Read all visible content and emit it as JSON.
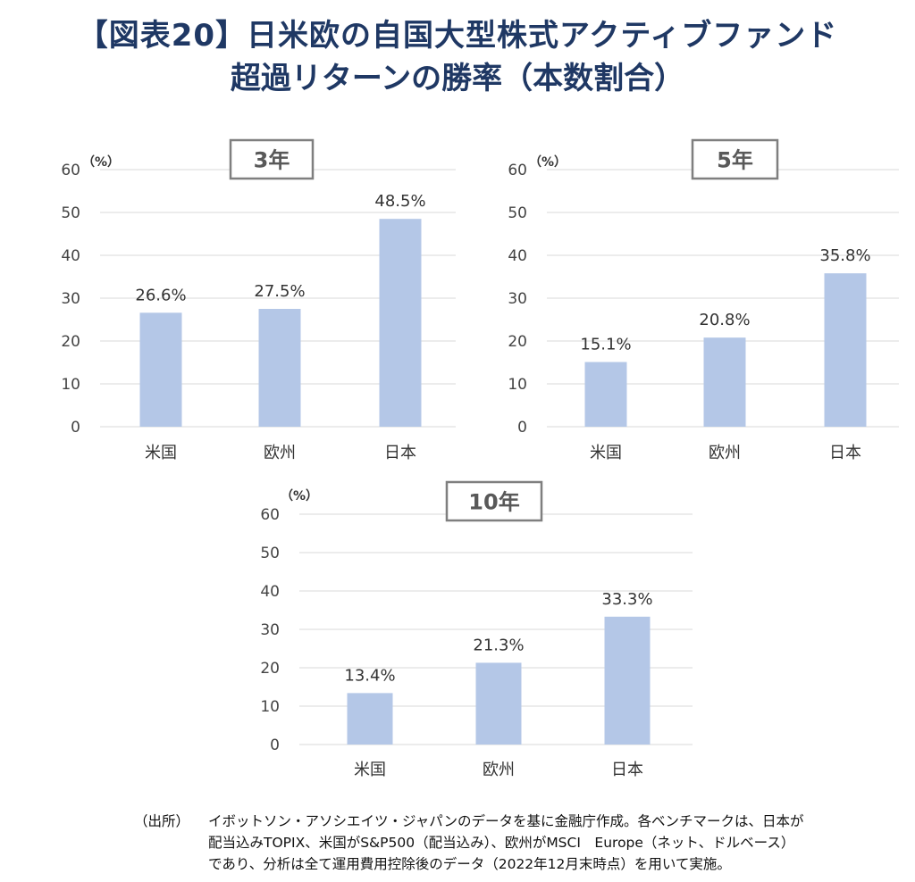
{
  "title": {
    "line1": "【図表20】日米欧の自国大型株式アクティブファンド",
    "line2": "超過リターンの勝率（本数割合）"
  },
  "charts": [
    {
      "period": "3年",
      "unit": "（%）",
      "categories": [
        "米国",
        "欧州",
        "日本"
      ],
      "values": [
        26.6,
        27.5,
        48.5
      ],
      "labels": [
        "26.6%",
        "27.5%",
        "48.5%"
      ],
      "yticks": [
        "0",
        "10",
        "20",
        "30",
        "40",
        "50",
        "60"
      ]
    },
    {
      "period": "5年",
      "unit": "（%）",
      "categories": [
        "米国",
        "欧州",
        "日本"
      ],
      "values": [
        15.1,
        20.8,
        35.8
      ],
      "labels": [
        "15.1%",
        "20.8%",
        "35.8%"
      ],
      "yticks": [
        "0",
        "10",
        "20",
        "30",
        "40",
        "50",
        "60"
      ]
    },
    {
      "period": "10年",
      "unit": "（%）",
      "categories": [
        "米国",
        "欧州",
        "日本"
      ],
      "values": [
        13.4,
        21.3,
        33.3
      ],
      "labels": [
        "13.4%",
        "21.3%",
        "33.3%"
      ],
      "yticks": [
        "0",
        "10",
        "20",
        "30",
        "40",
        "50",
        "60"
      ]
    }
  ],
  "chart_data": [
    {
      "type": "bar",
      "title": "3年",
      "categories": [
        "米国",
        "欧州",
        "日本"
      ],
      "values": [
        26.6,
        27.5,
        48.5
      ],
      "ylabel": "（%）",
      "ylim": [
        0,
        60
      ],
      "grid": true
    },
    {
      "type": "bar",
      "title": "5年",
      "categories": [
        "米国",
        "欧州",
        "日本"
      ],
      "values": [
        15.1,
        20.8,
        35.8
      ],
      "ylabel": "（%）",
      "ylim": [
        0,
        60
      ],
      "grid": true
    },
    {
      "type": "bar",
      "title": "10年",
      "categories": [
        "米国",
        "欧州",
        "日本"
      ],
      "values": [
        13.4,
        21.3,
        33.3
      ],
      "ylabel": "（%）",
      "ylim": [
        0,
        60
      ],
      "grid": true
    }
  ],
  "colors": {
    "title": "#1f3864",
    "bar": "#b4c7e7",
    "grid": "#d9d9d9",
    "panel_border": "#7f7f7f"
  },
  "source": {
    "label": "（出所）",
    "lines": [
      "イボットソン・アソシエイツ・ジャパンのデータを基に金融庁作成。各ベンチマークは、日本が",
      "配当込みTOPIX、米国がS&P500（配当込み）、欧州がMSCI　Europe（ネット、ドルベース）",
      "であり、分析は全て運用費用控除後のデータ（2022年12月末時点）を用いて実施。"
    ]
  }
}
